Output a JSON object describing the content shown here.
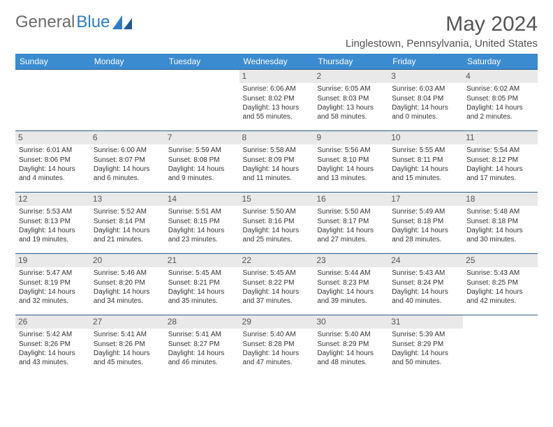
{
  "brand": {
    "text_gray": "General",
    "text_blue": "Blue"
  },
  "title": "May 2024",
  "location": "Linglestown, Pennsylvania, United States",
  "colors": {
    "header_bg": "#3b8bd0",
    "header_fg": "#ffffff",
    "row_border": "#2a5d8a",
    "daynum_bg": "#e9e9e9",
    "text": "#333333",
    "logo_gray": "#6b6b6b",
    "logo_blue": "#2f7cc4"
  },
  "day_names": [
    "Sunday",
    "Monday",
    "Tuesday",
    "Wednesday",
    "Thursday",
    "Friday",
    "Saturday"
  ],
  "weeks": [
    [
      null,
      null,
      null,
      {
        "n": "1",
        "sr": "6:06 AM",
        "ss": "8:02 PM",
        "dl": "13 hours and 55 minutes."
      },
      {
        "n": "2",
        "sr": "6:05 AM",
        "ss": "8:03 PM",
        "dl": "13 hours and 58 minutes."
      },
      {
        "n": "3",
        "sr": "6:03 AM",
        "ss": "8:04 PM",
        "dl": "14 hours and 0 minutes."
      },
      {
        "n": "4",
        "sr": "6:02 AM",
        "ss": "8:05 PM",
        "dl": "14 hours and 2 minutes."
      }
    ],
    [
      {
        "n": "5",
        "sr": "6:01 AM",
        "ss": "8:06 PM",
        "dl": "14 hours and 4 minutes."
      },
      {
        "n": "6",
        "sr": "6:00 AM",
        "ss": "8:07 PM",
        "dl": "14 hours and 6 minutes."
      },
      {
        "n": "7",
        "sr": "5:59 AM",
        "ss": "8:08 PM",
        "dl": "14 hours and 9 minutes."
      },
      {
        "n": "8",
        "sr": "5:58 AM",
        "ss": "8:09 PM",
        "dl": "14 hours and 11 minutes."
      },
      {
        "n": "9",
        "sr": "5:56 AM",
        "ss": "8:10 PM",
        "dl": "14 hours and 13 minutes."
      },
      {
        "n": "10",
        "sr": "5:55 AM",
        "ss": "8:11 PM",
        "dl": "14 hours and 15 minutes."
      },
      {
        "n": "11",
        "sr": "5:54 AM",
        "ss": "8:12 PM",
        "dl": "14 hours and 17 minutes."
      }
    ],
    [
      {
        "n": "12",
        "sr": "5:53 AM",
        "ss": "8:13 PM",
        "dl": "14 hours and 19 minutes."
      },
      {
        "n": "13",
        "sr": "5:52 AM",
        "ss": "8:14 PM",
        "dl": "14 hours and 21 minutes."
      },
      {
        "n": "14",
        "sr": "5:51 AM",
        "ss": "8:15 PM",
        "dl": "14 hours and 23 minutes."
      },
      {
        "n": "15",
        "sr": "5:50 AM",
        "ss": "8:16 PM",
        "dl": "14 hours and 25 minutes."
      },
      {
        "n": "16",
        "sr": "5:50 AM",
        "ss": "8:17 PM",
        "dl": "14 hours and 27 minutes."
      },
      {
        "n": "17",
        "sr": "5:49 AM",
        "ss": "8:18 PM",
        "dl": "14 hours and 28 minutes."
      },
      {
        "n": "18",
        "sr": "5:48 AM",
        "ss": "8:18 PM",
        "dl": "14 hours and 30 minutes."
      }
    ],
    [
      {
        "n": "19",
        "sr": "5:47 AM",
        "ss": "8:19 PM",
        "dl": "14 hours and 32 minutes."
      },
      {
        "n": "20",
        "sr": "5:46 AM",
        "ss": "8:20 PM",
        "dl": "14 hours and 34 minutes."
      },
      {
        "n": "21",
        "sr": "5:45 AM",
        "ss": "8:21 PM",
        "dl": "14 hours and 35 minutes."
      },
      {
        "n": "22",
        "sr": "5:45 AM",
        "ss": "8:22 PM",
        "dl": "14 hours and 37 minutes."
      },
      {
        "n": "23",
        "sr": "5:44 AM",
        "ss": "8:23 PM",
        "dl": "14 hours and 39 minutes."
      },
      {
        "n": "24",
        "sr": "5:43 AM",
        "ss": "8:24 PM",
        "dl": "14 hours and 40 minutes."
      },
      {
        "n": "25",
        "sr": "5:43 AM",
        "ss": "8:25 PM",
        "dl": "14 hours and 42 minutes."
      }
    ],
    [
      {
        "n": "26",
        "sr": "5:42 AM",
        "ss": "8:26 PM",
        "dl": "14 hours and 43 minutes."
      },
      {
        "n": "27",
        "sr": "5:41 AM",
        "ss": "8:26 PM",
        "dl": "14 hours and 45 minutes."
      },
      {
        "n": "28",
        "sr": "5:41 AM",
        "ss": "8:27 PM",
        "dl": "14 hours and 46 minutes."
      },
      {
        "n": "29",
        "sr": "5:40 AM",
        "ss": "8:28 PM",
        "dl": "14 hours and 47 minutes."
      },
      {
        "n": "30",
        "sr": "5:40 AM",
        "ss": "8:29 PM",
        "dl": "14 hours and 48 minutes."
      },
      {
        "n": "31",
        "sr": "5:39 AM",
        "ss": "8:29 PM",
        "dl": "14 hours and 50 minutes."
      },
      null
    ]
  ],
  "labels": {
    "sunrise": "Sunrise:",
    "sunset": "Sunset:",
    "daylight": "Daylight:"
  }
}
